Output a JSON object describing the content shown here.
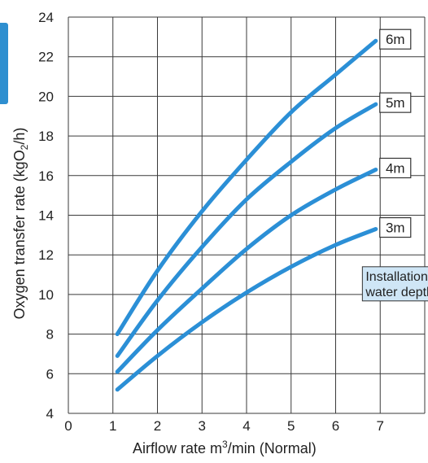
{
  "chart_data": {
    "type": "line",
    "title": "",
    "xlabel": "Airflow rate m3/min (Normal)",
    "xlabel_main": "Airflow rate  m",
    "xlabel_sup": "3",
    "xlabel_rest": "/min (Normal)",
    "ylabel": "Oxygen transfer rate (kgO2/h)",
    "ylabel_main": "Oxygen transfer rate (kgO",
    "ylabel_sub": "2",
    "ylabel_rest": "/h)",
    "xlim": [
      0,
      8
    ],
    "ylim": [
      4,
      24
    ],
    "xticks": [
      "0",
      "1",
      "2",
      "3",
      "4",
      "5",
      "6",
      "7"
    ],
    "yticks": [
      "4",
      "6",
      "8",
      "10",
      "12",
      "14",
      "16",
      "18",
      "20",
      "22",
      "24"
    ],
    "grid": true,
    "legend": "none",
    "series": [
      {
        "name": "6m",
        "x": [
          1.1,
          2,
          3,
          4,
          5,
          6,
          6.9
        ],
        "y": [
          8.0,
          11.2,
          14.2,
          16.8,
          19.2,
          21.1,
          22.8
        ]
      },
      {
        "name": "5m",
        "x": [
          1.1,
          2,
          3,
          4,
          5,
          6,
          6.9
        ],
        "y": [
          6.9,
          9.7,
          12.4,
          14.8,
          16.7,
          18.4,
          19.6
        ]
      },
      {
        "name": "4m",
        "x": [
          1.1,
          2,
          3,
          4,
          5,
          6,
          6.9
        ],
        "y": [
          6.1,
          8.2,
          10.3,
          12.3,
          14.0,
          15.3,
          16.3
        ]
      },
      {
        "name": "3m",
        "x": [
          1.1,
          2,
          3,
          4,
          5,
          6,
          6.9
        ],
        "y": [
          5.2,
          6.9,
          8.6,
          10.1,
          11.4,
          12.5,
          13.3
        ]
      }
    ],
    "annotation": [
      "Installation",
      "water depth"
    ],
    "colors": {
      "line": "#2b8fd6",
      "annotation_fill": "#cfe6f6",
      "grid": "#3a3a3a"
    }
  }
}
